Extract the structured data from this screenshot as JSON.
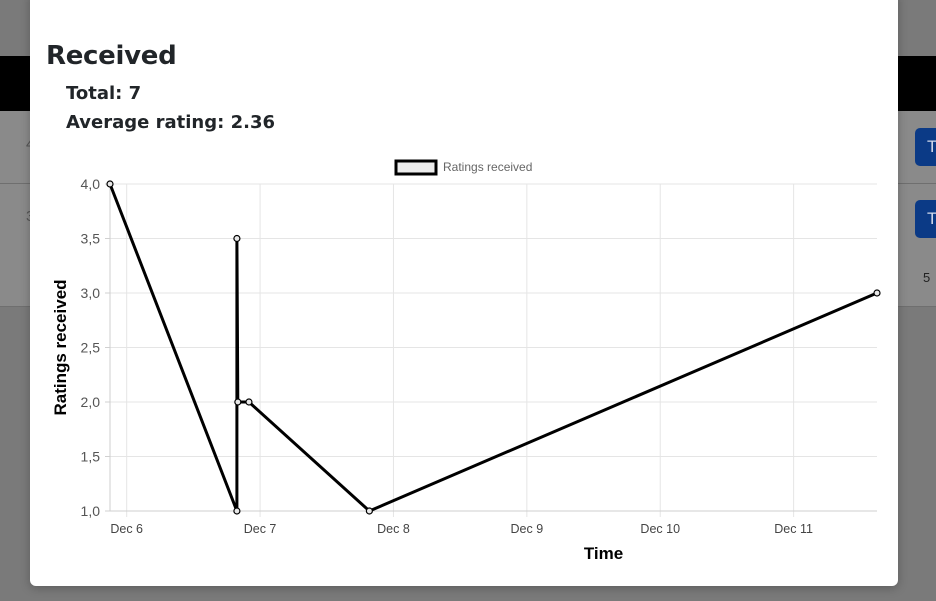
{
  "background": {
    "button_a_label": "T",
    "button_b_label": "T",
    "side_number": "5",
    "edge_a": "4",
    "edge_b": "3"
  },
  "modal": {
    "title": "Received",
    "total_text": "Total: 7",
    "average_text": "Average rating: 2.36"
  },
  "chart_data": {
    "type": "line",
    "x_axis": {
      "label": "Time",
      "type": "time",
      "range": [
        "2023-12-05T21:00",
        "2023-12-11T15:00"
      ],
      "ticks": [
        "Dec 6",
        "Dec 7",
        "Dec 8",
        "Dec 9",
        "Dec 10",
        "Dec 11"
      ],
      "grid": true
    },
    "y_axis": {
      "label": "Ratings received",
      "range": [
        1.0,
        4.0
      ],
      "ticks": [
        "1,0",
        "1,5",
        "2,0",
        "2,5",
        "3,0",
        "3,5",
        "4,0"
      ],
      "grid": true
    },
    "legend": {
      "position": "top",
      "entries": [
        "Ratings received"
      ]
    },
    "series": [
      {
        "name": "Ratings received",
        "color": "#000000",
        "points": [
          {
            "x": "2023-12-05T21:00",
            "y": 4.0
          },
          {
            "x": "2023-12-06T19:50",
            "y": 1.0
          },
          {
            "x": "2023-12-06T19:50",
            "y": 3.5
          },
          {
            "x": "2023-12-06T20:00",
            "y": 2.0
          },
          {
            "x": "2023-12-06T22:00",
            "y": 2.0
          },
          {
            "x": "2023-12-07T19:40",
            "y": 1.0
          },
          {
            "x": "2023-12-11T15:00",
            "y": 3.0
          }
        ]
      }
    ]
  }
}
